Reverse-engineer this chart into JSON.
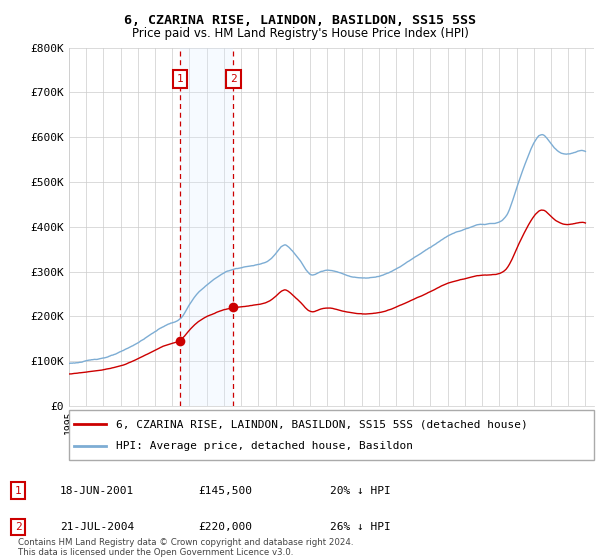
{
  "title": "6, CZARINA RISE, LAINDON, BASILDON, SS15 5SS",
  "subtitle": "Price paid vs. HM Land Registry's House Price Index (HPI)",
  "legend_property": "6, CZARINA RISE, LAINDON, BASILDON, SS15 5SS (detached house)",
  "legend_hpi": "HPI: Average price, detached house, Basildon",
  "footer": "Contains HM Land Registry data © Crown copyright and database right 2024.\nThis data is licensed under the Open Government Licence v3.0.",
  "sale1_label": "1",
  "sale1_date": "18-JUN-2001",
  "sale1_price": "£145,500",
  "sale1_hpi": "20% ↓ HPI",
  "sale1_year": 2001.46,
  "sale1_value": 145500,
  "sale2_label": "2",
  "sale2_date": "21-JUL-2004",
  "sale2_price": "£220,000",
  "sale2_hpi": "26% ↓ HPI",
  "sale2_year": 2004.55,
  "sale2_value": 220000,
  "property_color": "#cc0000",
  "hpi_color": "#7dadd4",
  "shade_color": "#ddeeff",
  "grid_color": "#cccccc",
  "marker_border_color": "#cc0000",
  "ylim_min": 0,
  "ylim_max": 800000,
  "xmin": 1995,
  "xmax": 2025.5
}
